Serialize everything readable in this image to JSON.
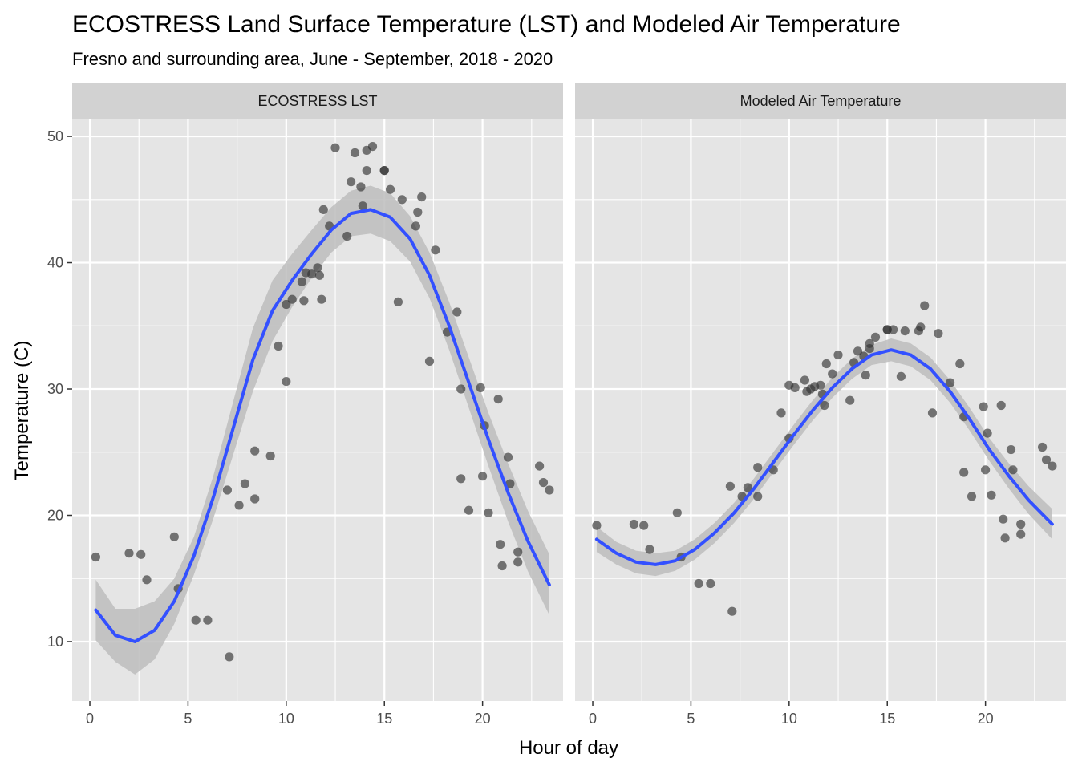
{
  "chart_data": {
    "type": "scatter",
    "title": "ECOSTRESS Land Surface Temperature (LST) and Modeled Air Temperature",
    "subtitle": "Fresno and surrounding area, June - September, 2018 - 2020",
    "xlabel": "Hour of day",
    "ylabel": "Temperature (C)",
    "xlim": [
      -0.9,
      24.1
    ],
    "ylim": [
      5.3,
      51.4
    ],
    "x_ticks": [
      0,
      5,
      10,
      15,
      20
    ],
    "y_ticks": [
      10,
      20,
      30,
      40,
      50
    ],
    "grid": true,
    "colors": {
      "panel_bg": "#e5e5e5",
      "strip_bg": "#d2d2d2",
      "grid": "#ffffff",
      "point": "#333333",
      "smooth_line": "#3350ff",
      "ribbon": "#bdbdbd"
    },
    "panels": [
      {
        "name": "ECOSTRESS LST",
        "points": [
          [
            0.3,
            16.7
          ],
          [
            2.0,
            17.0
          ],
          [
            2.6,
            16.9
          ],
          [
            2.9,
            14.9
          ],
          [
            4.3,
            18.3
          ],
          [
            4.5,
            14.2
          ],
          [
            5.4,
            11.7
          ],
          [
            6.0,
            11.7
          ],
          [
            7.0,
            22.0
          ],
          [
            7.1,
            8.8
          ],
          [
            7.6,
            20.8
          ],
          [
            7.9,
            22.5
          ],
          [
            8.4,
            21.3
          ],
          [
            8.4,
            25.1
          ],
          [
            9.2,
            24.7
          ],
          [
            9.6,
            33.4
          ],
          [
            10.0,
            30.6
          ],
          [
            10.0,
            36.7
          ],
          [
            10.3,
            37.1
          ],
          [
            10.8,
            38.5
          ],
          [
            10.9,
            37.0
          ],
          [
            11.0,
            39.2
          ],
          [
            11.3,
            39.1
          ],
          [
            11.6,
            39.6
          ],
          [
            11.7,
            39.0
          ],
          [
            11.8,
            37.1
          ],
          [
            11.9,
            44.2
          ],
          [
            12.2,
            42.9
          ],
          [
            12.5,
            49.1
          ],
          [
            13.1,
            42.1
          ],
          [
            13.3,
            46.4
          ],
          [
            13.5,
            48.7
          ],
          [
            13.8,
            46.0
          ],
          [
            13.9,
            44.5
          ],
          [
            14.1,
            47.3
          ],
          [
            14.1,
            48.9
          ],
          [
            14.4,
            49.2
          ],
          [
            15.0,
            47.3
          ],
          [
            15.0,
            47.3
          ],
          [
            15.3,
            45.8
          ],
          [
            15.7,
            36.9
          ],
          [
            15.9,
            45.0
          ],
          [
            16.6,
            42.9
          ],
          [
            16.7,
            44.0
          ],
          [
            16.9,
            45.2
          ],
          [
            17.3,
            32.2
          ],
          [
            17.6,
            41.0
          ],
          [
            18.2,
            34.5
          ],
          [
            18.7,
            36.1
          ],
          [
            18.9,
            22.9
          ],
          [
            18.9,
            30.0
          ],
          [
            19.3,
            20.4
          ],
          [
            19.9,
            30.1
          ],
          [
            20.0,
            23.1
          ],
          [
            20.1,
            27.1
          ],
          [
            20.3,
            20.2
          ],
          [
            20.8,
            29.2
          ],
          [
            20.9,
            17.7
          ],
          [
            21.0,
            16.0
          ],
          [
            21.3,
            24.6
          ],
          [
            21.4,
            22.5
          ],
          [
            21.8,
            17.1
          ],
          [
            21.8,
            16.3
          ],
          [
            22.9,
            23.9
          ],
          [
            23.1,
            22.6
          ],
          [
            23.4,
            22.0
          ]
        ],
        "fit": [
          [
            0.3,
            12.5
          ],
          [
            1.3,
            10.5
          ],
          [
            2.3,
            10.0
          ],
          [
            3.3,
            10.9
          ],
          [
            4.3,
            13.2
          ],
          [
            5.3,
            16.8
          ],
          [
            6.3,
            21.5
          ],
          [
            7.3,
            26.9
          ],
          [
            8.3,
            32.3
          ],
          [
            9.3,
            36.2
          ],
          [
            10.3,
            38.6
          ],
          [
            11.3,
            40.7
          ],
          [
            12.3,
            42.6
          ],
          [
            13.3,
            43.9
          ],
          [
            14.3,
            44.2
          ],
          [
            15.3,
            43.6
          ],
          [
            16.3,
            41.9
          ],
          [
            17.3,
            39.0
          ],
          [
            18.3,
            35.0
          ],
          [
            19.3,
            30.5
          ],
          [
            20.3,
            26.0
          ],
          [
            21.3,
            21.8
          ],
          [
            22.3,
            18.0
          ],
          [
            23.4,
            14.5
          ]
        ],
        "ci_lower": [
          [
            0.3,
            10.1
          ],
          [
            1.3,
            8.4
          ],
          [
            2.3,
            7.4
          ],
          [
            3.3,
            8.6
          ],
          [
            4.3,
            11.4
          ],
          [
            5.3,
            15.3
          ],
          [
            6.3,
            19.8
          ],
          [
            7.3,
            24.8
          ],
          [
            8.3,
            29.8
          ],
          [
            9.3,
            33.8
          ],
          [
            10.3,
            36.5
          ],
          [
            11.3,
            38.8
          ],
          [
            12.3,
            40.8
          ],
          [
            13.3,
            42.1
          ],
          [
            14.3,
            42.3
          ],
          [
            15.3,
            41.7
          ],
          [
            16.3,
            40.1
          ],
          [
            17.3,
            37.2
          ],
          [
            18.3,
            33.1
          ],
          [
            19.3,
            28.5
          ],
          [
            20.3,
            23.9
          ],
          [
            21.3,
            19.5
          ],
          [
            22.3,
            15.6
          ],
          [
            23.4,
            12.1
          ]
        ],
        "ci_upper": [
          [
            0.3,
            14.9
          ],
          [
            1.3,
            12.6
          ],
          [
            2.3,
            12.6
          ],
          [
            3.3,
            13.2
          ],
          [
            4.3,
            15.0
          ],
          [
            5.3,
            18.3
          ],
          [
            6.3,
            23.2
          ],
          [
            7.3,
            29.0
          ],
          [
            8.3,
            34.8
          ],
          [
            9.3,
            38.6
          ],
          [
            10.3,
            40.7
          ],
          [
            11.3,
            42.6
          ],
          [
            12.3,
            44.4
          ],
          [
            13.3,
            45.7
          ],
          [
            14.3,
            46.1
          ],
          [
            15.3,
            45.5
          ],
          [
            16.3,
            43.7
          ],
          [
            17.3,
            40.8
          ],
          [
            18.3,
            36.9
          ],
          [
            19.3,
            32.5
          ],
          [
            20.3,
            28.1
          ],
          [
            21.3,
            24.1
          ],
          [
            22.3,
            20.4
          ],
          [
            23.4,
            16.9
          ]
        ]
      },
      {
        "name": "Modeled Air Temperature",
        "points": [
          [
            0.2,
            19.2
          ],
          [
            2.1,
            19.3
          ],
          [
            2.6,
            19.2
          ],
          [
            2.9,
            17.3
          ],
          [
            4.3,
            20.2
          ],
          [
            4.5,
            16.7
          ],
          [
            5.4,
            14.6
          ],
          [
            6.0,
            14.6
          ],
          [
            7.0,
            22.3
          ],
          [
            7.1,
            12.4
          ],
          [
            7.6,
            21.5
          ],
          [
            7.9,
            22.2
          ],
          [
            8.4,
            21.5
          ],
          [
            8.4,
            23.8
          ],
          [
            9.2,
            23.6
          ],
          [
            9.6,
            28.1
          ],
          [
            10.0,
            26.1
          ],
          [
            10.0,
            30.3
          ],
          [
            10.3,
            30.1
          ],
          [
            10.8,
            30.7
          ],
          [
            10.9,
            29.8
          ],
          [
            11.1,
            30.0
          ],
          [
            11.3,
            30.2
          ],
          [
            11.6,
            30.3
          ],
          [
            11.7,
            29.6
          ],
          [
            11.8,
            28.7
          ],
          [
            11.9,
            32.0
          ],
          [
            12.2,
            31.2
          ],
          [
            12.5,
            32.7
          ],
          [
            13.1,
            29.1
          ],
          [
            13.3,
            32.1
          ],
          [
            13.5,
            33.0
          ],
          [
            13.8,
            32.6
          ],
          [
            13.9,
            31.1
          ],
          [
            14.1,
            33.2
          ],
          [
            14.1,
            33.6
          ],
          [
            14.4,
            34.1
          ],
          [
            15.0,
            34.7
          ],
          [
            15.0,
            34.7
          ],
          [
            15.3,
            34.7
          ],
          [
            15.7,
            31.0
          ],
          [
            15.9,
            34.6
          ],
          [
            16.6,
            34.6
          ],
          [
            16.7,
            34.9
          ],
          [
            16.9,
            36.6
          ],
          [
            17.3,
            28.1
          ],
          [
            17.6,
            34.4
          ],
          [
            18.2,
            30.5
          ],
          [
            18.7,
            32.0
          ],
          [
            18.9,
            23.4
          ],
          [
            18.9,
            27.8
          ],
          [
            19.3,
            21.5
          ],
          [
            19.9,
            28.6
          ],
          [
            20.0,
            23.6
          ],
          [
            20.1,
            26.5
          ],
          [
            20.3,
            21.6
          ],
          [
            20.8,
            28.7
          ],
          [
            20.9,
            19.7
          ],
          [
            21.0,
            18.2
          ],
          [
            21.3,
            25.2
          ],
          [
            21.4,
            23.6
          ],
          [
            21.8,
            19.3
          ],
          [
            21.8,
            18.5
          ],
          [
            22.9,
            25.4
          ],
          [
            23.1,
            24.4
          ],
          [
            23.4,
            23.9
          ]
        ],
        "fit": [
          [
            0.2,
            18.1
          ],
          [
            1.2,
            17.0
          ],
          [
            2.2,
            16.3
          ],
          [
            3.2,
            16.1
          ],
          [
            4.2,
            16.4
          ],
          [
            5.2,
            17.3
          ],
          [
            6.2,
            18.6
          ],
          [
            7.2,
            20.2
          ],
          [
            8.2,
            22.1
          ],
          [
            9.2,
            24.2
          ],
          [
            10.2,
            26.3
          ],
          [
            11.2,
            28.3
          ],
          [
            12.2,
            30.1
          ],
          [
            13.2,
            31.6
          ],
          [
            14.2,
            32.7
          ],
          [
            15.2,
            33.1
          ],
          [
            16.2,
            32.7
          ],
          [
            17.2,
            31.6
          ],
          [
            18.2,
            29.8
          ],
          [
            19.2,
            27.6
          ],
          [
            20.2,
            25.2
          ],
          [
            21.2,
            23.1
          ],
          [
            22.2,
            21.2
          ],
          [
            23.4,
            19.3
          ]
        ],
        "ci_lower": [
          [
            0.2,
            17.1
          ],
          [
            1.2,
            16.1
          ],
          [
            2.2,
            15.4
          ],
          [
            3.2,
            15.2
          ],
          [
            4.2,
            15.6
          ],
          [
            5.2,
            16.5
          ],
          [
            6.2,
            17.8
          ],
          [
            7.2,
            19.4
          ],
          [
            8.2,
            21.3
          ],
          [
            9.2,
            23.4
          ],
          [
            10.2,
            25.5
          ],
          [
            11.2,
            27.5
          ],
          [
            12.2,
            29.3
          ],
          [
            13.2,
            30.8
          ],
          [
            14.2,
            31.9
          ],
          [
            15.2,
            32.2
          ],
          [
            16.2,
            31.8
          ],
          [
            17.2,
            30.7
          ],
          [
            18.2,
            28.9
          ],
          [
            19.2,
            26.7
          ],
          [
            20.2,
            24.3
          ],
          [
            21.2,
            22.1
          ],
          [
            22.2,
            20.1
          ],
          [
            23.4,
            18.1
          ]
        ],
        "ci_upper": [
          [
            0.2,
            19.1
          ],
          [
            1.2,
            17.9
          ],
          [
            2.2,
            17.2
          ],
          [
            3.2,
            17.0
          ],
          [
            4.2,
            17.2
          ],
          [
            5.2,
            18.1
          ],
          [
            6.2,
            19.4
          ],
          [
            7.2,
            21.0
          ],
          [
            8.2,
            22.9
          ],
          [
            9.2,
            25.0
          ],
          [
            10.2,
            27.1
          ],
          [
            11.2,
            29.1
          ],
          [
            12.2,
            30.9
          ],
          [
            13.2,
            32.4
          ],
          [
            14.2,
            33.5
          ],
          [
            15.2,
            34.0
          ],
          [
            16.2,
            33.6
          ],
          [
            17.2,
            32.5
          ],
          [
            18.2,
            30.7
          ],
          [
            19.2,
            28.5
          ],
          [
            20.2,
            26.1
          ],
          [
            21.2,
            24.1
          ],
          [
            22.2,
            22.3
          ],
          [
            23.4,
            20.5
          ]
        ]
      }
    ]
  }
}
